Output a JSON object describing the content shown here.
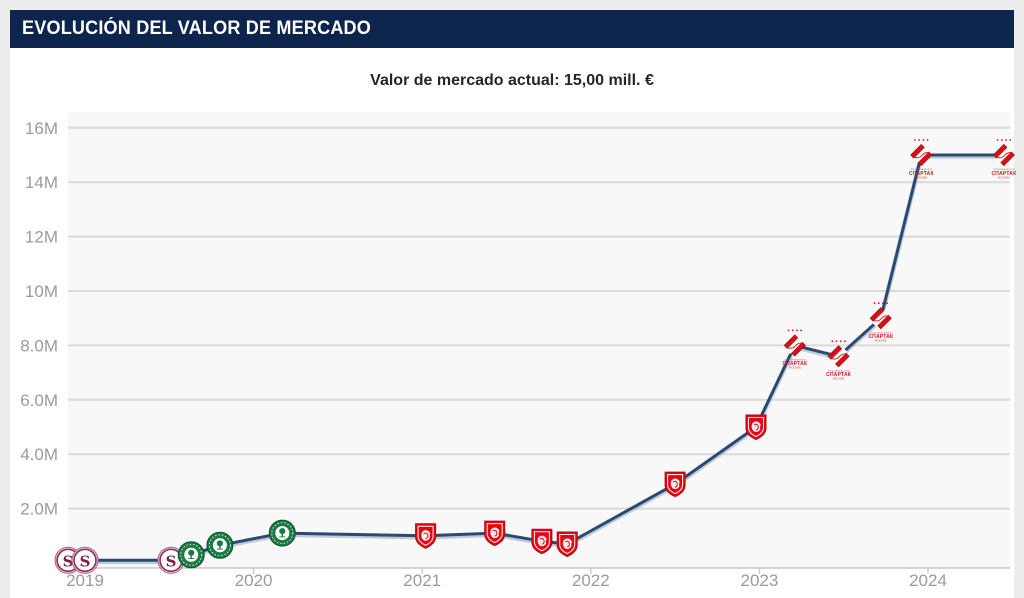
{
  "header": {
    "title": "EVOLUCIÓN DEL VALOR DE MERCADO"
  },
  "subtitle": "Valor de mercado actual: 15,00 mill. €",
  "colors": {
    "header_bg": "#0d254c",
    "panel_bg": "#ffffff",
    "page_bg": "#ededed",
    "plot_bg": "#f8f8f8",
    "grid": "#dadada",
    "axis_line": "#c9c9c9",
    "axis_text": "#9b9b9b",
    "line": "#2a4a6f",
    "line_shadow": "#8fa5bd",
    "s_crest_maroon": "#7a1f40",
    "green_crest": "#1e7a45",
    "red_shield": "#e30613",
    "spartak_red": "#d31217"
  },
  "chart_data": {
    "type": "line",
    "title": "Valor de mercado actual: 15,00 mill. €",
    "unit": "mill. €",
    "current_value": "15,00 mill. €",
    "xlim": [
      2018.85,
      2024.55
    ],
    "ylim": [
      0,
      16.6
    ],
    "grid": true,
    "x_ticks": [
      {
        "value": 2019,
        "label": "2019"
      },
      {
        "value": 2020,
        "label": "2020"
      },
      {
        "value": 2021,
        "label": "2021"
      },
      {
        "value": 2022,
        "label": "2022"
      },
      {
        "value": 2023,
        "label": "2023"
      },
      {
        "value": 2024,
        "label": "2024"
      }
    ],
    "y_ticks": [
      {
        "value": 16,
        "label": "16M"
      },
      {
        "value": 14,
        "label": "14M"
      },
      {
        "value": 12,
        "label": "12M"
      },
      {
        "value": 10,
        "label": "10M"
      },
      {
        "value": 8,
        "label": "8.0M"
      },
      {
        "value": 6,
        "label": "6.0M"
      },
      {
        "value": 4,
        "label": "4.0M"
      },
      {
        "value": 2,
        "label": "2.0M"
      }
    ],
    "points": [
      {
        "x": 2018.9,
        "value": 0.1,
        "club": "s"
      },
      {
        "x": 2019.0,
        "value": 0.1,
        "club": "s"
      },
      {
        "x": 2019.51,
        "value": 0.1,
        "club": "s"
      },
      {
        "x": 2019.63,
        "value": 0.3,
        "club": "green"
      },
      {
        "x": 2019.8,
        "value": 0.65,
        "club": "green"
      },
      {
        "x": 2020.17,
        "value": 1.1,
        "club": "green"
      },
      {
        "x": 2021.02,
        "value": 1.0,
        "club": "redshield"
      },
      {
        "x": 2021.43,
        "value": 1.1,
        "club": "redshield"
      },
      {
        "x": 2021.71,
        "value": 0.8,
        "club": "redshield"
      },
      {
        "x": 2021.86,
        "value": 0.7,
        "club": "redshield"
      },
      {
        "x": 2022.5,
        "value": 2.9,
        "club": "redshield"
      },
      {
        "x": 2022.98,
        "value": 5.0,
        "club": "redshield"
      },
      {
        "x": 2023.21,
        "value": 8.0,
        "club": "spartak"
      },
      {
        "x": 2023.47,
        "value": 7.6,
        "club": "spartak"
      },
      {
        "x": 2023.72,
        "value": 9.0,
        "club": "spartak"
      },
      {
        "x": 2023.96,
        "value": 15.0,
        "club": "spartak"
      },
      {
        "x": 2024.45,
        "value": 15.0,
        "club": "spartak"
      }
    ],
    "clubs": {
      "s": {
        "letter": "S"
      },
      "green": {},
      "redshield": {},
      "spartak": {
        "toplabel": "ФУТБОЛЬНЫЙ КЛУБ",
        "label": "СПАРТАК",
        "sublabel": "МОСКВА"
      }
    }
  }
}
